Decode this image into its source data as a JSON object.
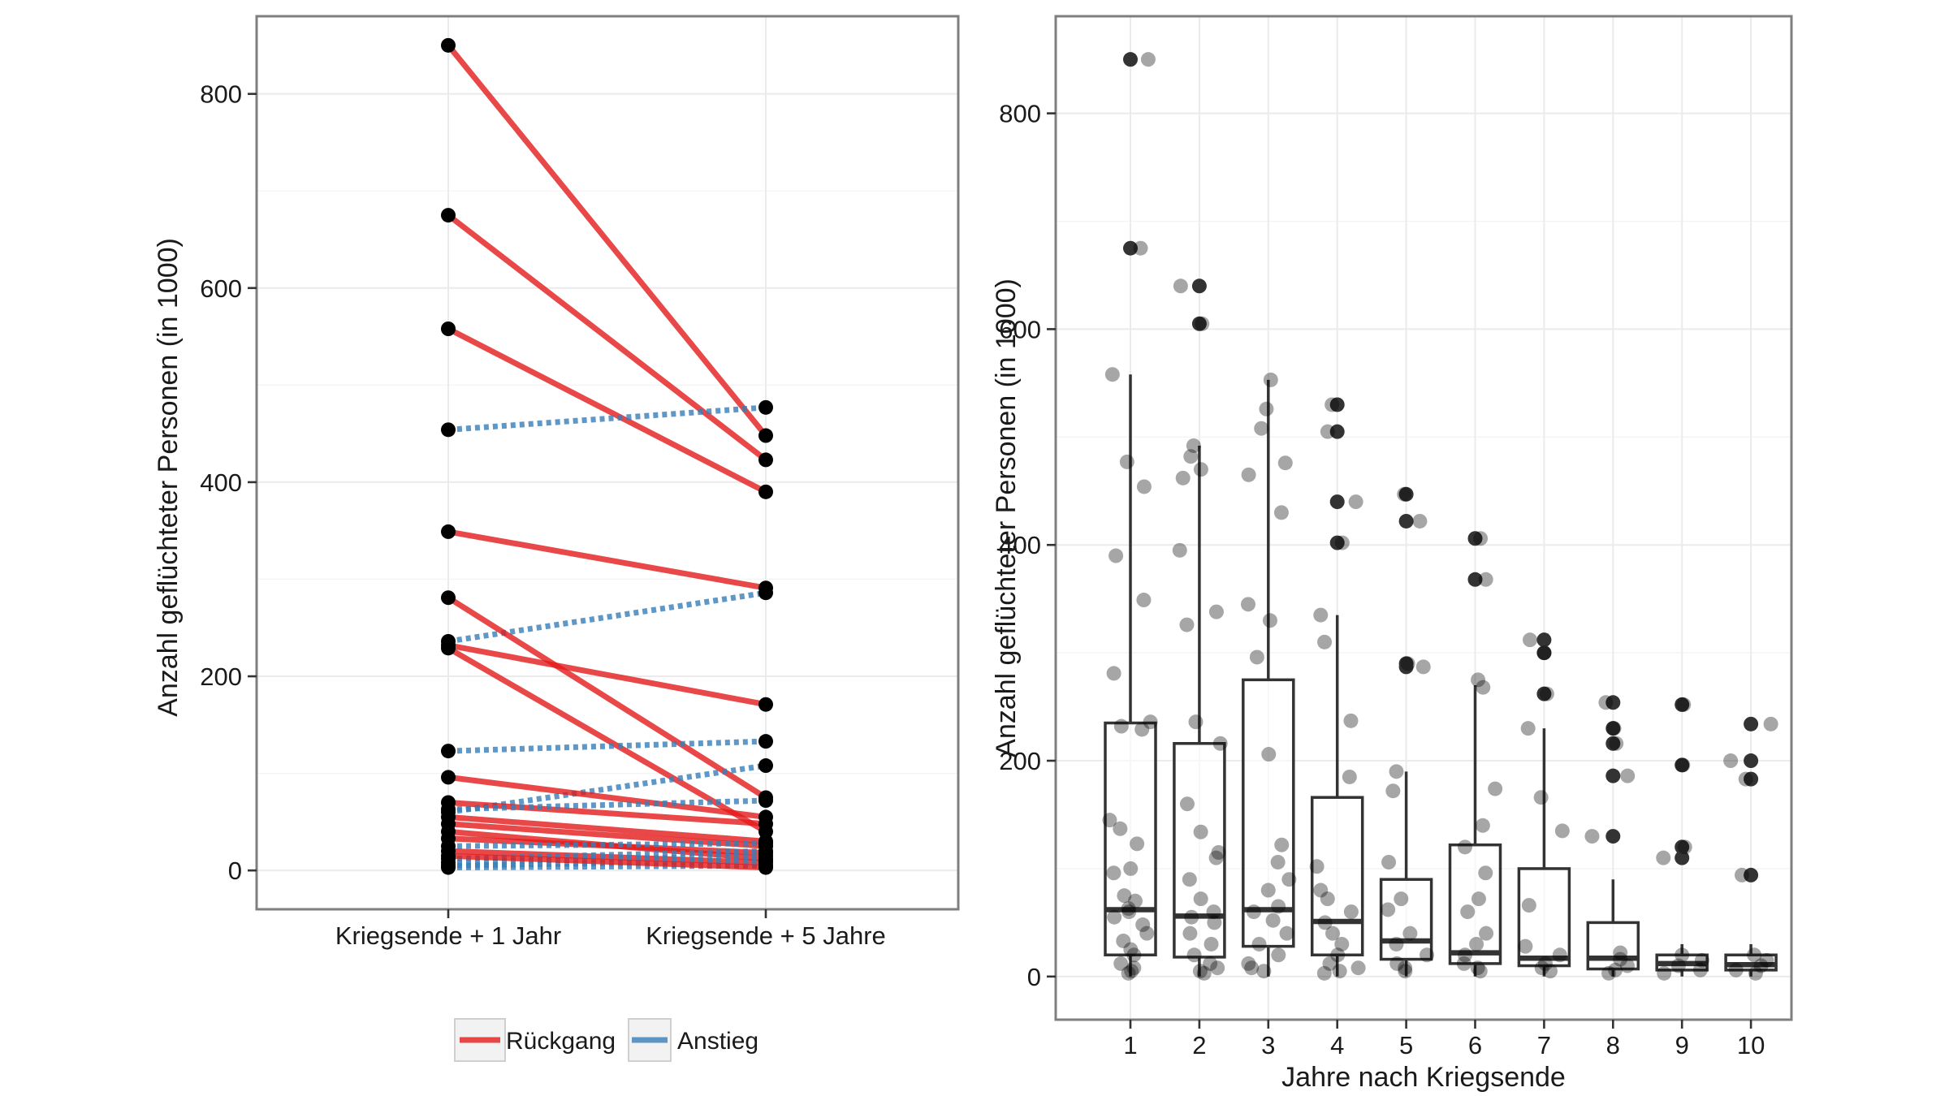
{
  "colors": {
    "decline": "#e41a1c",
    "increase": "#377eb8",
    "point": "#000000",
    "box": "#333333"
  },
  "chart_data": [
    {
      "type": "line",
      "name": "slope-chart",
      "categories": [
        "Kriegsende + 1 Jahr",
        "Kriegsende + 5 Jahre"
      ],
      "ylabel": "Anzahl geflüchteter Personen (in 1000)",
      "xlabel": "",
      "ylim": [
        -40,
        880
      ],
      "yticks": [
        0,
        200,
        400,
        600,
        800
      ],
      "grid": true,
      "legend": {
        "position": "bottom",
        "entries": [
          {
            "label": "Rückgang",
            "color": "#e41a1c",
            "style": "solid"
          },
          {
            "label": "Anstieg",
            "color": "#377eb8",
            "style": "dotted"
          }
        ]
      },
      "series": [
        {
          "name": "Rückgang",
          "values": [
            850,
            448
          ]
        },
        {
          "name": "Rückgang",
          "values": [
            675,
            423
          ]
        },
        {
          "name": "Rückgang",
          "values": [
            558,
            390
          ]
        },
        {
          "name": "Anstieg",
          "values": [
            454,
            477
          ]
        },
        {
          "name": "Rückgang",
          "values": [
            349,
            291
          ]
        },
        {
          "name": "Anstieg",
          "values": [
            236,
            286
          ]
        },
        {
          "name": "Rückgang",
          "values": [
            281,
            75
          ]
        },
        {
          "name": "Rückgang",
          "values": [
            232,
            171
          ]
        },
        {
          "name": "Rückgang",
          "values": [
            229,
            40
          ]
        },
        {
          "name": "Anstieg",
          "values": [
            123,
            133
          ]
        },
        {
          "name": "Anstieg",
          "values": [
            60,
            108
          ]
        },
        {
          "name": "Rückgang",
          "values": [
            96,
            55
          ]
        },
        {
          "name": "Rückgang",
          "values": [
            70,
            48
          ]
        },
        {
          "name": "Anstieg",
          "values": [
            63,
            72
          ]
        },
        {
          "name": "Rückgang",
          "values": [
            55,
            30
          ]
        },
        {
          "name": "Rückgang",
          "values": [
            48,
            25
          ]
        },
        {
          "name": "Rückgang",
          "values": [
            40,
            12
          ]
        },
        {
          "name": "Rückgang",
          "values": [
            33,
            18
          ]
        },
        {
          "name": "Anstieg",
          "values": [
            25,
            28
          ]
        },
        {
          "name": "Rückgang",
          "values": [
            20,
            8
          ]
        },
        {
          "name": "Anstieg",
          "values": [
            12,
            20
          ]
        },
        {
          "name": "Anstieg",
          "values": [
            8,
            15
          ]
        },
        {
          "name": "Anstieg",
          "values": [
            5,
            10
          ]
        },
        {
          "name": "Anstieg",
          "values": [
            3,
            5
          ]
        },
        {
          "name": "Rückgang",
          "values": [
            15,
            3
          ]
        }
      ]
    },
    {
      "type": "box",
      "name": "boxplot",
      "categories": [
        "1",
        "2",
        "3",
        "4",
        "5",
        "6",
        "7",
        "8",
        "9",
        "10"
      ],
      "xlabel": "Jahre nach Kriegsende",
      "ylabel": "Anzahl geflüchteter Personen (in 1000)",
      "ylim": [
        -40,
        890
      ],
      "yticks": [
        0,
        200,
        400,
        600,
        800
      ],
      "grid": true,
      "boxes": [
        {
          "q1": 20,
          "median": 62,
          "q3": 235,
          "whisker_low": 0,
          "whisker_high": 558,
          "outliers": [
            675,
            850
          ]
        },
        {
          "q1": 18,
          "median": 56,
          "q3": 216,
          "whisker_low": 0,
          "whisker_high": 492,
          "outliers": [
            605,
            640
          ]
        },
        {
          "q1": 28,
          "median": 62,
          "q3": 275,
          "whisker_low": 0,
          "whisker_high": 553,
          "outliers": []
        },
        {
          "q1": 20,
          "median": 51,
          "q3": 166,
          "whisker_low": 0,
          "whisker_high": 335,
          "outliers": [
            402,
            440,
            505,
            530
          ]
        },
        {
          "q1": 16,
          "median": 33,
          "q3": 90,
          "whisker_low": 0,
          "whisker_high": 190,
          "outliers": [
            287,
            290,
            422,
            447
          ]
        },
        {
          "q1": 12,
          "median": 22,
          "q3": 122,
          "whisker_low": 0,
          "whisker_high": 270,
          "outliers": [
            368,
            406
          ]
        },
        {
          "q1": 10,
          "median": 17,
          "q3": 100,
          "whisker_low": 0,
          "whisker_high": 230,
          "outliers": [
            262,
            300,
            312
          ]
        },
        {
          "q1": 7,
          "median": 17,
          "q3": 50,
          "whisker_low": 0,
          "whisker_high": 90,
          "outliers": [
            130,
            186,
            216,
            230,
            254
          ]
        },
        {
          "q1": 6,
          "median": 12,
          "q3": 20,
          "whisker_low": 0,
          "whisker_high": 30,
          "outliers": [
            110,
            120,
            196,
            252
          ]
        },
        {
          "q1": 6,
          "median": 11,
          "q3": 20,
          "whisker_low": 0,
          "whisker_high": 30,
          "outliers": [
            94,
            183,
            200,
            234
          ]
        }
      ],
      "jitter_points": [
        [
          850,
          675,
          558,
          477,
          454,
          390,
          349,
          281,
          236,
          232,
          229,
          145,
          137,
          123,
          100,
          96,
          75,
          70,
          63,
          60,
          55,
          48,
          40,
          33,
          25,
          20,
          12,
          8,
          5,
          3
        ],
        [
          640,
          605,
          492,
          482,
          470,
          462,
          395,
          338,
          326,
          236,
          216,
          160,
          134,
          115,
          110,
          90,
          72,
          60,
          55,
          50,
          40,
          30,
          20,
          12,
          8,
          5,
          3
        ],
        [
          553,
          526,
          508,
          476,
          465,
          430,
          345,
          330,
          296,
          206,
          122,
          106,
          90,
          80,
          65,
          60,
          52,
          40,
          30,
          20,
          12,
          8,
          5
        ],
        [
          530,
          505,
          440,
          402,
          335,
          310,
          237,
          185,
          102,
          80,
          72,
          60,
          50,
          40,
          30,
          20,
          12,
          8,
          5,
          3
        ],
        [
          447,
          422,
          290,
          287,
          190,
          172,
          106,
          72,
          62,
          40,
          30,
          20,
          12,
          8,
          5
        ],
        [
          406,
          368,
          275,
          268,
          174,
          140,
          120,
          96,
          72,
          60,
          40,
          30,
          20,
          12,
          8,
          5
        ],
        [
          312,
          300,
          262,
          230,
          166,
          135,
          66,
          28,
          20,
          12,
          8,
          5
        ],
        [
          254,
          230,
          216,
          186,
          130,
          22,
          16,
          10,
          6,
          3
        ],
        [
          252,
          196,
          120,
          110,
          20,
          15,
          10,
          6,
          3
        ],
        [
          234,
          200,
          183,
          94,
          20,
          15,
          10,
          6,
          3
        ]
      ]
    }
  ]
}
